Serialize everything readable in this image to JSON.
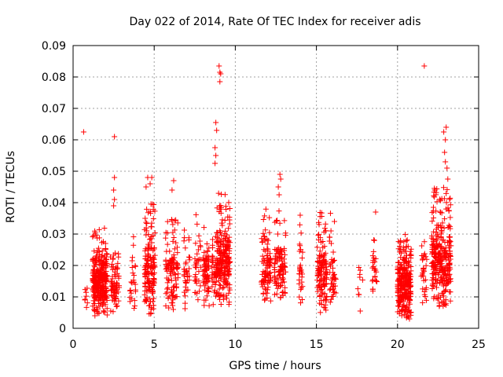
{
  "chart_data": {
    "type": "scatter",
    "title": "Day 022 of 2014, Rate Of TEC Index for receiver adis",
    "xlabel": "GPS time / hours",
    "ylabel": "ROTI / TECUs",
    "xlim": [
      0,
      25
    ],
    "ylim": [
      0,
      0.09
    ],
    "xticks": [
      0,
      5,
      10,
      15,
      20,
      25
    ],
    "xtick_labels": [
      "0",
      "5",
      "10",
      "15",
      "20",
      "25"
    ],
    "yticks": [
      0,
      0.01,
      0.02,
      0.03,
      0.04,
      0.05,
      0.06,
      0.07,
      0.08,
      0.09
    ],
    "ytick_labels": [
      "0",
      "0.01",
      "0.02",
      "0.03",
      "0.04",
      "0.05",
      "0.06",
      "0.07",
      "0.08",
      "0.09"
    ],
    "grid": true,
    "marker": "+",
    "color": "#ff0000",
    "outliers": [
      [
        0.65,
        0.0625
      ],
      [
        2.55,
        0.061
      ],
      [
        2.55,
        0.048
      ],
      [
        2.5,
        0.044
      ],
      [
        2.55,
        0.041
      ],
      [
        2.5,
        0.039
      ],
      [
        4.6,
        0.048
      ],
      [
        4.75,
        0.046
      ],
      [
        4.85,
        0.048
      ],
      [
        4.5,
        0.045
      ],
      [
        6.2,
        0.047
      ],
      [
        6.1,
        0.044
      ],
      [
        8.8,
        0.0655
      ],
      [
        8.85,
        0.063
      ],
      [
        8.75,
        0.0575
      ],
      [
        8.8,
        0.055
      ],
      [
        8.75,
        0.0525
      ],
      [
        9.0,
        0.0835
      ],
      [
        9.05,
        0.0815
      ],
      [
        9.1,
        0.081
      ],
      [
        9.05,
        0.0785
      ],
      [
        12.75,
        0.049
      ],
      [
        12.8,
        0.0475
      ],
      [
        12.65,
        0.045
      ],
      [
        12.7,
        0.0425
      ],
      [
        21.65,
        0.0835
      ],
      [
        23.0,
        0.064
      ],
      [
        22.85,
        0.0625
      ],
      [
        22.95,
        0.06
      ],
      [
        22.9,
        0.056
      ],
      [
        22.95,
        0.053
      ],
      [
        23.05,
        0.051
      ],
      [
        23.1,
        0.0475
      ],
      [
        17.7,
        0.0055
      ],
      [
        18.65,
        0.037
      ],
      [
        14.0,
        0.036
      ]
    ],
    "clusters": [
      {
        "x": [
          0.65,
          0.9
        ],
        "y": [
          0.006,
          0.017
        ],
        "n": 8
      },
      {
        "x": [
          1.2,
          2.1
        ],
        "y": [
          0.004,
          0.032
        ],
        "n": 330
      },
      {
        "x": [
          2.3,
          2.85
        ],
        "y": [
          0.004,
          0.028
        ],
        "n": 70
      },
      {
        "x": [
          3.5,
          3.85
        ],
        "y": [
          0.006,
          0.03
        ],
        "n": 25
      },
      {
        "x": [
          4.4,
          5.05
        ],
        "y": [
          0.003,
          0.04
        ],
        "n": 160
      },
      {
        "x": [
          5.7,
          6.5
        ],
        "y": [
          0.006,
          0.036
        ],
        "n": 110
      },
      {
        "x": [
          6.8,
          7.2
        ],
        "y": [
          0.006,
          0.032
        ],
        "n": 35
      },
      {
        "x": [
          7.5,
          7.9
        ],
        "y": [
          0.008,
          0.038
        ],
        "n": 35
      },
      {
        "x": [
          8.0,
          8.4
        ],
        "y": [
          0.007,
          0.034
        ],
        "n": 70
      },
      {
        "x": [
          8.55,
          8.85
        ],
        "y": [
          0.007,
          0.032
        ],
        "n": 40
      },
      {
        "x": [
          8.85,
          9.7
        ],
        "y": [
          0.007,
          0.043
        ],
        "n": 220
      },
      {
        "x": [
          11.6,
          12.2
        ],
        "y": [
          0.008,
          0.038
        ],
        "n": 100
      },
      {
        "x": [
          12.4,
          13.1
        ],
        "y": [
          0.008,
          0.038
        ],
        "n": 100
      },
      {
        "x": [
          13.9,
          14.15
        ],
        "y": [
          0.008,
          0.034
        ],
        "n": 28
      },
      {
        "x": [
          15.05,
          15.65
        ],
        "y": [
          0.005,
          0.039
        ],
        "n": 130
      },
      {
        "x": [
          15.8,
          16.2
        ],
        "y": [
          0.006,
          0.037
        ],
        "n": 45
      },
      {
        "x": [
          17.55,
          17.85
        ],
        "y": [
          0.01,
          0.026
        ],
        "n": 8
      },
      {
        "x": [
          18.45,
          18.75
        ],
        "y": [
          0.009,
          0.03
        ],
        "n": 25
      },
      {
        "x": [
          20.0,
          20.85
        ],
        "y": [
          0.003,
          0.031
        ],
        "n": 280
      },
      {
        "x": [
          21.45,
          21.8
        ],
        "y": [
          0.008,
          0.033
        ],
        "n": 30
      },
      {
        "x": [
          22.1,
          23.3
        ],
        "y": [
          0.007,
          0.045
        ],
        "n": 300
      }
    ]
  }
}
